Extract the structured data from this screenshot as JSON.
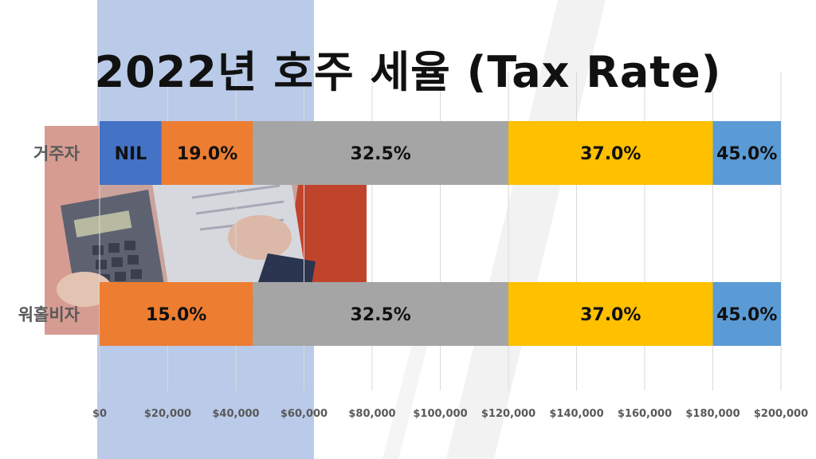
{
  "title": "2022년 호주 세율 (Tax Rate)",
  "chart_data": {
    "type": "bar",
    "orientation": "horizontal",
    "stacked": true,
    "title": "2022년 호주 세율 (Tax Rate)",
    "xlabel": "",
    "ylabel": "",
    "xlim": [
      0,
      200000
    ],
    "x_ticks": [
      0,
      20000,
      40000,
      60000,
      80000,
      100000,
      120000,
      140000,
      160000,
      180000,
      200000
    ],
    "x_tick_labels": [
      "$0",
      "$20,000",
      "$40,000",
      "$60,000",
      "$80,000",
      "$100,000",
      "$120,000",
      "$140,000",
      "$160,000",
      "$180,000",
      "$200,000"
    ],
    "grid": "vertical",
    "legend": "none",
    "categories": [
      "거주자",
      "워홀비자"
    ],
    "bars": [
      {
        "category": "거주자",
        "segments": [
          {
            "start": 0,
            "end": 18200,
            "label": "NIL",
            "color": "#4472c4"
          },
          {
            "start": 18200,
            "end": 45000,
            "label": "19.0%",
            "color": "#ed7d31"
          },
          {
            "start": 45000,
            "end": 120000,
            "label": "32.5%",
            "color": "#a5a5a5"
          },
          {
            "start": 120000,
            "end": 180000,
            "label": "37.0%",
            "color": "#ffc000"
          },
          {
            "start": 180000,
            "end": 200000,
            "label": "45.0%",
            "color": "#5b9bd5"
          }
        ]
      },
      {
        "category": "워홀비자",
        "segments": [
          {
            "start": 0,
            "end": 45000,
            "label": "15.0%",
            "color": "#ed7d31"
          },
          {
            "start": 45000,
            "end": 120000,
            "label": "32.5%",
            "color": "#a5a5a5"
          },
          {
            "start": 120000,
            "end": 180000,
            "label": "37.0%",
            "color": "#ffc000"
          },
          {
            "start": 180000,
            "end": 200000,
            "label": "45.0%",
            "color": "#5b9bd5"
          }
        ]
      }
    ]
  }
}
